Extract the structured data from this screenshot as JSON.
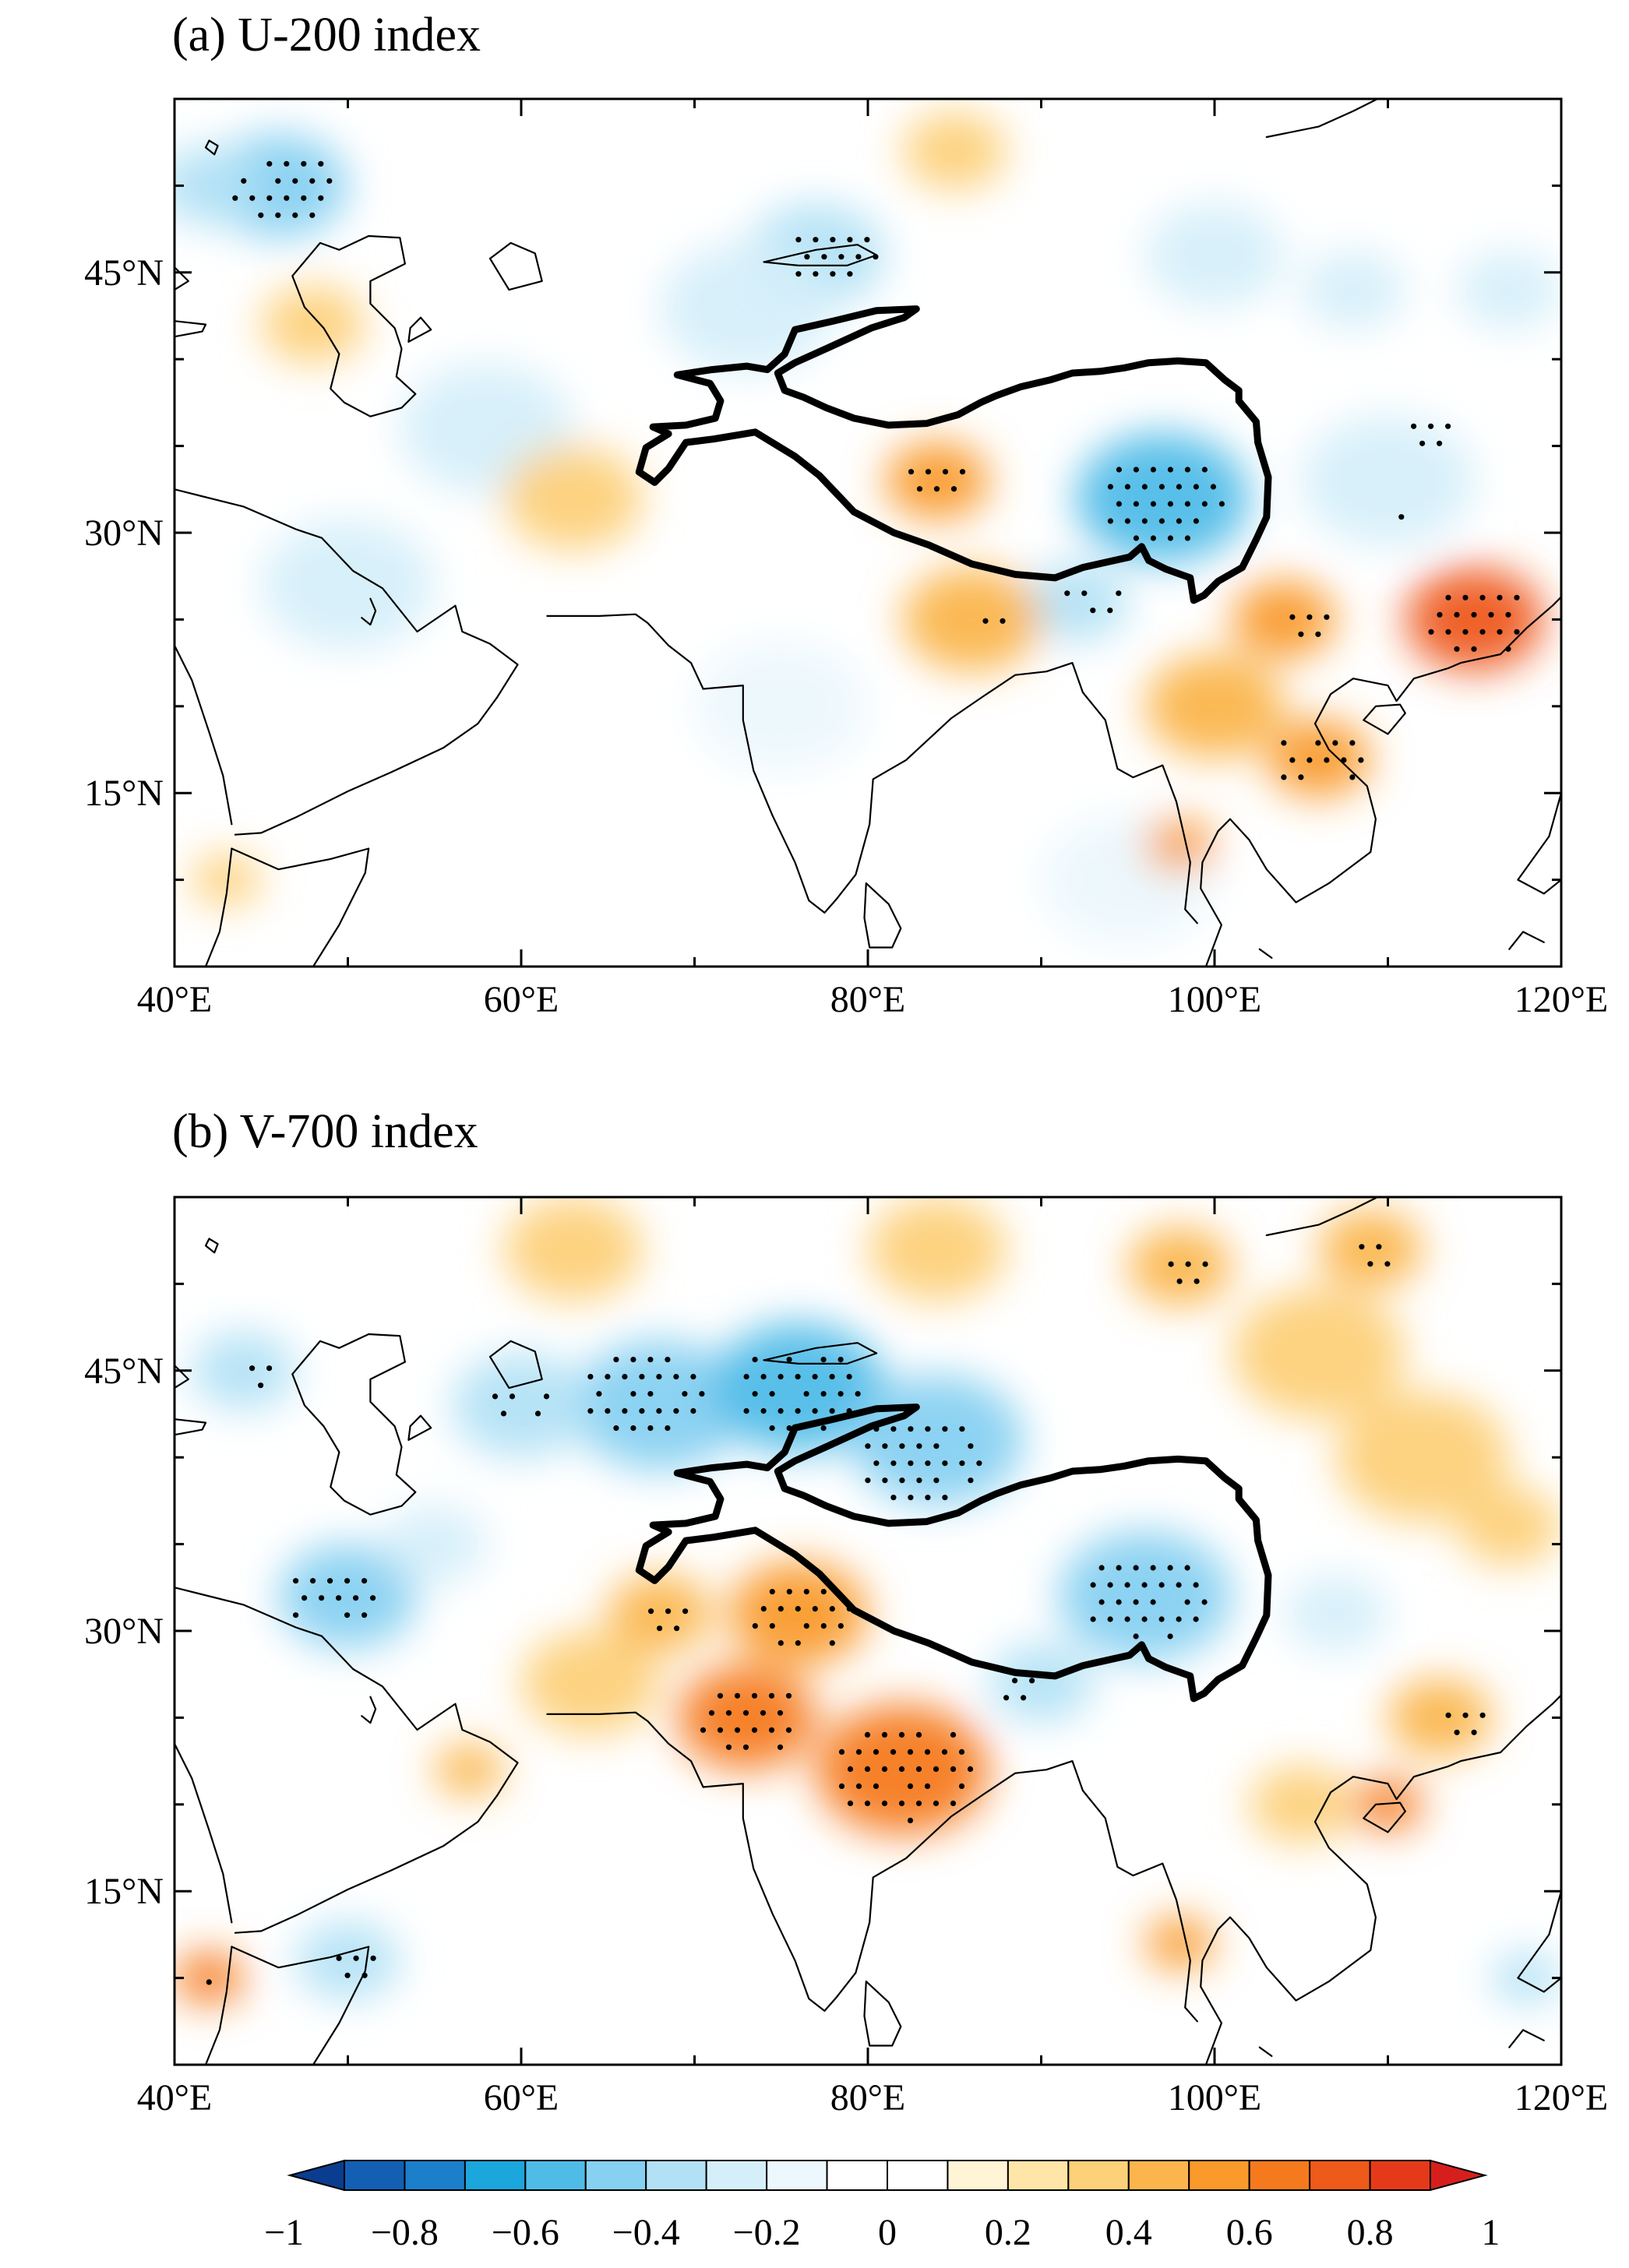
{
  "panels": [
    {
      "id": "a",
      "title": "(a) U-200 index",
      "lon_range": [
        40,
        120
      ],
      "lat_range": [
        5,
        55
      ],
      "x_ticks": [
        "40°E",
        "60°E",
        "80°E",
        "100°E",
        "120°E"
      ],
      "y_ticks": [
        "45°N",
        "30°N",
        "15°N"
      ],
      "anomaly_patches": [
        {
          "lon": 46,
          "lat": 50,
          "value": -0.5,
          "r": 4
        },
        {
          "lon": 42,
          "lat": 50,
          "value": -0.4,
          "r": 3
        },
        {
          "lon": 77,
          "lat": 46,
          "value": -0.4,
          "r": 4
        },
        {
          "lon": 73,
          "lat": 43,
          "value": -0.3,
          "r": 5
        },
        {
          "lon": 97,
          "lat": 32,
          "value": -0.6,
          "r": 5
        },
        {
          "lon": 92,
          "lat": 26,
          "value": -0.4,
          "r": 3
        },
        {
          "lon": 110,
          "lat": 33,
          "value": -0.3,
          "r": 5
        },
        {
          "lon": 58,
          "lat": 36,
          "value": -0.3,
          "r": 5
        },
        {
          "lon": 50,
          "lat": 27,
          "value": -0.3,
          "r": 5
        },
        {
          "lon": 100,
          "lat": 46,
          "value": -0.3,
          "r": 4
        },
        {
          "lon": 108,
          "lat": 44,
          "value": -0.3,
          "r": 3
        },
        {
          "lon": 117,
          "lat": 44,
          "value": -0.3,
          "r": 3
        },
        {
          "lon": 75,
          "lat": 20,
          "value": -0.2,
          "r": 5
        },
        {
          "lon": 95,
          "lat": 10,
          "value": -0.2,
          "r": 5
        },
        {
          "lon": 84,
          "lat": 33,
          "value": 0.5,
          "r": 3
        },
        {
          "lon": 86,
          "lat": 25,
          "value": 0.4,
          "r": 4
        },
        {
          "lon": 115,
          "lat": 25,
          "value": 0.7,
          "r": 4
        },
        {
          "lon": 106,
          "lat": 17,
          "value": 0.5,
          "r": 3
        },
        {
          "lon": 100,
          "lat": 20,
          "value": 0.4,
          "r": 4
        },
        {
          "lon": 104,
          "lat": 25,
          "value": 0.5,
          "r": 3
        },
        {
          "lon": 98,
          "lat": 12,
          "value": 0.5,
          "r": 2
        },
        {
          "lon": 63,
          "lat": 32,
          "value": 0.3,
          "r": 4
        },
        {
          "lon": 43,
          "lat": 10,
          "value": 0.3,
          "r": 2
        },
        {
          "lon": 85,
          "lat": 52,
          "value": 0.3,
          "r": 3
        },
        {
          "lon": 48,
          "lat": 42,
          "value": 0.3,
          "r": 3
        }
      ],
      "stipple_regions": [
        {
          "lon": 46,
          "lat": 50,
          "r": 3
        },
        {
          "lon": 78,
          "lat": 46,
          "r": 2.5
        },
        {
          "lon": 97,
          "lat": 32,
          "r": 3.5
        },
        {
          "lon": 93,
          "lat": 26,
          "r": 2
        },
        {
          "lon": 84,
          "lat": 33,
          "r": 2
        },
        {
          "lon": 115,
          "lat": 25,
          "r": 3
        },
        {
          "lon": 106,
          "lat": 17,
          "r": 2.5
        },
        {
          "lon": 105,
          "lat": 25,
          "r": 1.5
        },
        {
          "lon": 112,
          "lat": 36,
          "r": 1.5
        },
        {
          "lon": 110,
          "lat": 31,
          "r": 1.2
        },
        {
          "lon": 87,
          "lat": 25,
          "r": 1.2
        }
      ]
    },
    {
      "id": "b",
      "title": "(b) V-700 index",
      "lon_range": [
        40,
        120
      ],
      "lat_range": [
        5,
        55
      ],
      "x_ticks": [
        "40°E",
        "60°E",
        "80°E",
        "100°E",
        "120°E"
      ],
      "y_ticks": [
        "45°N",
        "30°N",
        "15°N"
      ],
      "anomaly_patches": [
        {
          "lon": 68,
          "lat": 43,
          "value": -0.5,
          "r": 5
        },
        {
          "lon": 76,
          "lat": 44,
          "value": -0.6,
          "r": 5
        },
        {
          "lon": 84,
          "lat": 41,
          "value": -0.5,
          "r": 5
        },
        {
          "lon": 60,
          "lat": 43,
          "value": -0.4,
          "r": 4
        },
        {
          "lon": 50,
          "lat": 32,
          "value": -0.5,
          "r": 4
        },
        {
          "lon": 96,
          "lat": 32,
          "value": -0.5,
          "r": 5
        },
        {
          "lon": 90,
          "lat": 27,
          "value": -0.4,
          "r": 3
        },
        {
          "lon": 44,
          "lat": 45,
          "value": -0.4,
          "r": 3
        },
        {
          "lon": 50,
          "lat": 11,
          "value": -0.4,
          "r": 3
        },
        {
          "lon": 118,
          "lat": 10,
          "value": -0.4,
          "r": 2
        },
        {
          "lon": 107,
          "lat": 31,
          "value": -0.3,
          "r": 3
        },
        {
          "lon": 55,
          "lat": 35,
          "value": -0.3,
          "r": 3
        },
        {
          "lon": 73,
          "lat": 25,
          "value": 0.6,
          "r": 4
        },
        {
          "lon": 82,
          "lat": 22,
          "value": 0.6,
          "r": 5
        },
        {
          "lon": 76,
          "lat": 31,
          "value": 0.5,
          "r": 4
        },
        {
          "lon": 68,
          "lat": 31,
          "value": 0.4,
          "r": 3
        },
        {
          "lon": 64,
          "lat": 27,
          "value": 0.3,
          "r": 4
        },
        {
          "lon": 106,
          "lat": 46,
          "value": 0.3,
          "r": 5
        },
        {
          "lon": 112,
          "lat": 40,
          "value": 0.3,
          "r": 5
        },
        {
          "lon": 98,
          "lat": 51,
          "value": 0.4,
          "r": 3
        },
        {
          "lon": 109,
          "lat": 52,
          "value": 0.4,
          "r": 3
        },
        {
          "lon": 110,
          "lat": 20,
          "value": 0.6,
          "r": 2
        },
        {
          "lon": 113,
          "lat": 25,
          "value": 0.4,
          "r": 3
        },
        {
          "lon": 105,
          "lat": 20,
          "value": 0.3,
          "r": 3
        },
        {
          "lon": 98,
          "lat": 12,
          "value": 0.5,
          "r": 2
        },
        {
          "lon": 42,
          "lat": 10,
          "value": 0.6,
          "r": 2
        },
        {
          "lon": 57,
          "lat": 22,
          "value": 0.4,
          "r": 2
        },
        {
          "lon": 63,
          "lat": 52,
          "value": 0.3,
          "r": 4
        },
        {
          "lon": 84,
          "lat": 52,
          "value": 0.3,
          "r": 4
        },
        {
          "lon": 117,
          "lat": 36,
          "value": 0.3,
          "r": 3
        }
      ],
      "stipple_regions": [
        {
          "lon": 67,
          "lat": 44,
          "r": 3.5
        },
        {
          "lon": 76,
          "lat": 44,
          "r": 3.5
        },
        {
          "lon": 83,
          "lat": 40,
          "r": 3.5
        },
        {
          "lon": 60,
          "lat": 43,
          "r": 2
        },
        {
          "lon": 49,
          "lat": 32,
          "r": 2.5
        },
        {
          "lon": 96,
          "lat": 32,
          "r": 3.5
        },
        {
          "lon": 73,
          "lat": 25,
          "r": 3
        },
        {
          "lon": 82,
          "lat": 22,
          "r": 4
        },
        {
          "lon": 76,
          "lat": 31,
          "r": 3
        },
        {
          "lon": 68,
          "lat": 31,
          "r": 1.5
        },
        {
          "lon": 44,
          "lat": 45,
          "r": 1.5
        },
        {
          "lon": 50,
          "lat": 11,
          "r": 1.5
        },
        {
          "lon": 98,
          "lat": 51,
          "r": 1.5
        },
        {
          "lon": 109,
          "lat": 52,
          "r": 1.5
        },
        {
          "lon": 114,
          "lat": 25,
          "r": 1.5
        },
        {
          "lon": 42,
          "lat": 10,
          "r": 1
        },
        {
          "lon": 88,
          "lat": 27,
          "r": 1.5
        }
      ]
    }
  ],
  "colorbar": {
    "levels": [
      -1,
      -0.9,
      -0.8,
      -0.7,
      -0.6,
      -0.5,
      -0.4,
      -0.3,
      -0.2,
      -0.1,
      0,
      0.1,
      0.2,
      0.3,
      0.4,
      0.5,
      0.6,
      0.7,
      0.8,
      0.9,
      1
    ],
    "colors": [
      "#0a3d8f",
      "#135fb4",
      "#1b7fcc",
      "#1ba6dc",
      "#4fbce8",
      "#86d0f1",
      "#b2e1f6",
      "#d5effa",
      "#ecf8fd",
      "#ffffff",
      "#ffffff",
      "#fff4d6",
      "#ffe6a8",
      "#fdd07a",
      "#fbb54c",
      "#f99a2a",
      "#f57a1d",
      "#ee5a1a",
      "#e43a1a",
      "#d61f1d"
    ],
    "labels": [
      "−1",
      "−0.8",
      "−0.6",
      "−0.4",
      "−0.2",
      "0",
      "0.2",
      "0.4",
      "0.6",
      "0.8",
      "1"
    ]
  }
}
